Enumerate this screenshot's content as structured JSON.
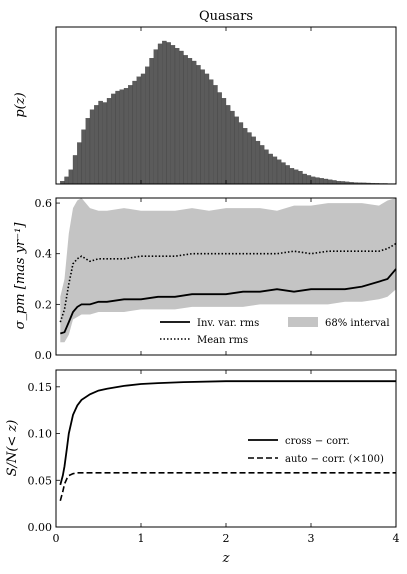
{
  "chart_data": [
    {
      "type": "bar",
      "title": "Quasars",
      "ylabel": "p(z)",
      "xlim": [
        0,
        4
      ],
      "bins": {
        "bin_width": 0.05,
        "start": 0.05,
        "values": [
          0.02,
          0.05,
          0.1,
          0.2,
          0.29,
          0.38,
          0.46,
          0.52,
          0.55,
          0.58,
          0.57,
          0.6,
          0.63,
          0.65,
          0.66,
          0.67,
          0.69,
          0.72,
          0.75,
          0.77,
          0.82,
          0.88,
          0.94,
          0.98,
          1.0,
          0.99,
          0.97,
          0.95,
          0.93,
          0.9,
          0.88,
          0.86,
          0.83,
          0.8,
          0.77,
          0.73,
          0.69,
          0.64,
          0.6,
          0.55,
          0.51,
          0.47,
          0.43,
          0.39,
          0.36,
          0.33,
          0.3,
          0.27,
          0.24,
          0.21,
          0.19,
          0.17,
          0.15,
          0.13,
          0.11,
          0.1,
          0.09,
          0.07,
          0.06,
          0.05,
          0.045,
          0.04,
          0.035,
          0.03,
          0.025,
          0.02,
          0.018,
          0.015,
          0.012,
          0.01,
          0.009,
          0.008,
          0.007,
          0.006,
          0.005,
          0.004,
          0.004,
          0.003,
          0.003
        ]
      }
    },
    {
      "type": "line",
      "ylabel": "σ_pm [mas yr⁻¹]",
      "xlim": [
        0,
        4
      ],
      "ylim": [
        0.0,
        0.62
      ],
      "yticks": [
        "0.0",
        "0.2",
        "0.4",
        "0.6"
      ],
      "x": [
        0.05,
        0.1,
        0.15,
        0.2,
        0.25,
        0.3,
        0.4,
        0.5,
        0.6,
        0.8,
        1.0,
        1.2,
        1.4,
        1.6,
        1.8,
        2.0,
        2.2,
        2.4,
        2.6,
        2.8,
        3.0,
        3.2,
        3.4,
        3.6,
        3.8,
        3.9,
        4.0
      ],
      "series": [
        {
          "name": "Inv. var. rms",
          "style": "solid",
          "values": [
            0.085,
            0.09,
            0.13,
            0.17,
            0.19,
            0.2,
            0.2,
            0.21,
            0.21,
            0.22,
            0.22,
            0.23,
            0.23,
            0.24,
            0.24,
            0.24,
            0.25,
            0.25,
            0.26,
            0.25,
            0.26,
            0.26,
            0.26,
            0.27,
            0.29,
            0.3,
            0.34
          ]
        },
        {
          "name": "Mean rms",
          "style": "dotted",
          "values": [
            0.13,
            0.18,
            0.28,
            0.36,
            0.38,
            0.39,
            0.37,
            0.38,
            0.38,
            0.38,
            0.39,
            0.39,
            0.39,
            0.4,
            0.4,
            0.4,
            0.4,
            0.4,
            0.4,
            0.41,
            0.4,
            0.41,
            0.41,
            0.41,
            0.41,
            0.42,
            0.44
          ]
        }
      ],
      "band": {
        "name": "68% interval",
        "lower": [
          0.05,
          0.05,
          0.08,
          0.14,
          0.15,
          0.16,
          0.16,
          0.17,
          0.17,
          0.17,
          0.18,
          0.18,
          0.18,
          0.19,
          0.19,
          0.19,
          0.19,
          0.2,
          0.2,
          0.2,
          0.2,
          0.2,
          0.21,
          0.21,
          0.22,
          0.23,
          0.26
        ],
        "upper": [
          0.23,
          0.3,
          0.48,
          0.58,
          0.61,
          0.62,
          0.58,
          0.57,
          0.57,
          0.58,
          0.57,
          0.57,
          0.57,
          0.58,
          0.57,
          0.58,
          0.58,
          0.58,
          0.57,
          0.59,
          0.59,
          0.6,
          0.6,
          0.6,
          0.59,
          0.61,
          0.62
        ]
      },
      "legend": "bottom-right"
    },
    {
      "type": "line",
      "ylabel": "S/N(< z)",
      "xlabel": "z",
      "xlim": [
        0,
        4
      ],
      "xticks": [
        "0",
        "1",
        "2",
        "3",
        "4"
      ],
      "ylim": [
        0.0,
        0.168
      ],
      "yticks": [
        "0.00",
        "0.05",
        "0.10",
        "0.15"
      ],
      "x": [
        0.05,
        0.08,
        0.1,
        0.13,
        0.15,
        0.2,
        0.25,
        0.3,
        0.4,
        0.5,
        0.6,
        0.8,
        1.0,
        1.2,
        1.5,
        2.0,
        2.5,
        3.0,
        3.5,
        4.0
      ],
      "series": [
        {
          "name": "cross − corr.",
          "style": "solid",
          "values": [
            0.045,
            0.055,
            0.065,
            0.085,
            0.1,
            0.12,
            0.13,
            0.136,
            0.142,
            0.146,
            0.148,
            0.151,
            0.153,
            0.154,
            0.155,
            0.156,
            0.156,
            0.156,
            0.156,
            0.156
          ]
        },
        {
          "name": "auto − corr. (×100)",
          "style": "dashed",
          "values": [
            0.028,
            0.038,
            0.046,
            0.052,
            0.055,
            0.057,
            0.058,
            0.058,
            0.058,
            0.058,
            0.058,
            0.058,
            0.058,
            0.058,
            0.058,
            0.058,
            0.058,
            0.058,
            0.058,
            0.058
          ]
        }
      ],
      "legend": "center-right"
    }
  ]
}
